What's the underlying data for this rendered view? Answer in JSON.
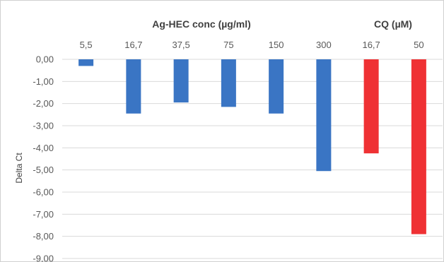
{
  "chart_data": {
    "type": "bar",
    "title": "",
    "xlabel": "",
    "ylabel": "Delta Ct",
    "ylim": [
      -9,
      0
    ],
    "ytick_step": 1,
    "yticks": [
      "0,00",
      "-1,00",
      "-2,00",
      "-3,00",
      "-4,00",
      "-5,00",
      "-6,00",
      "-7,00",
      "-8,00",
      "-9,00"
    ],
    "grid": true,
    "x_axis_position": "top",
    "groups": [
      {
        "label": "Ag-HEC conc (µg/ml)",
        "color": "#3a75c4",
        "categories": [
          "5,5",
          "16,7",
          "37,5",
          "75",
          "150",
          "300"
        ]
      },
      {
        "label": "CQ (µM)",
        "color": "#ef3134",
        "categories": [
          "16,7",
          "50"
        ]
      }
    ],
    "categories": [
      "5,5",
      "16,7",
      "37,5",
      "75",
      "150",
      "300",
      "16,7",
      "50"
    ],
    "values": [
      -0.3,
      -2.45,
      -1.95,
      -2.15,
      -2.45,
      -5.05,
      -4.25,
      -7.9
    ],
    "colors": [
      "#3a75c4",
      "#3a75c4",
      "#3a75c4",
      "#3a75c4",
      "#3a75c4",
      "#3a75c4",
      "#ef3134",
      "#ef3134"
    ]
  }
}
